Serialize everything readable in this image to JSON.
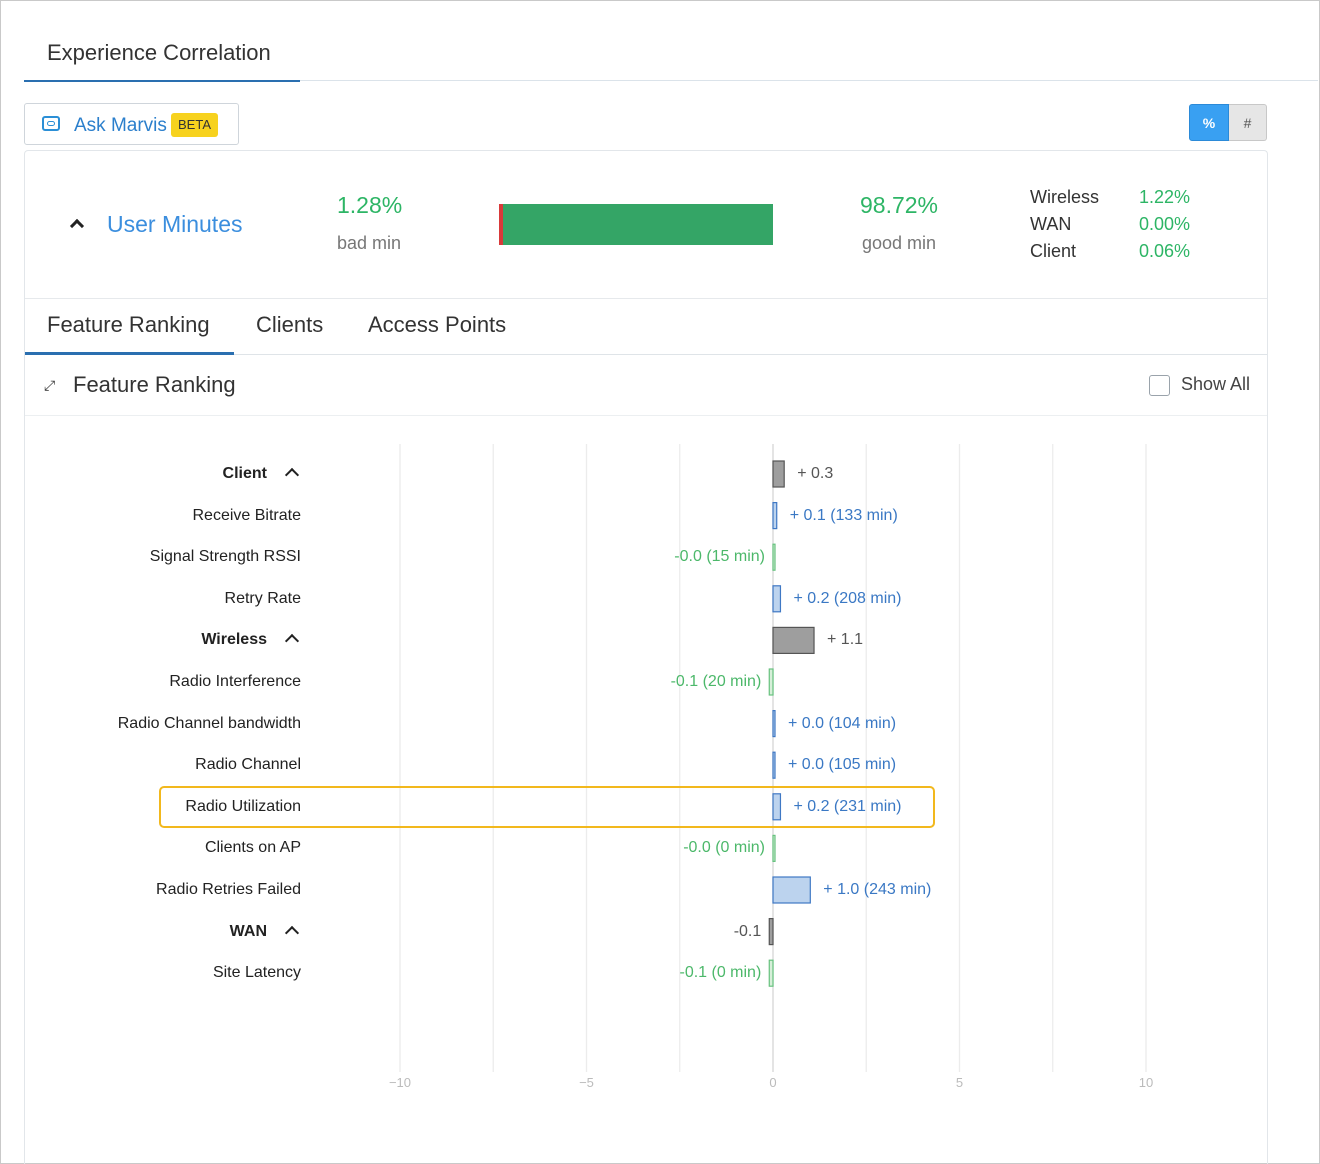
{
  "page": {
    "title": "Experience Correlation"
  },
  "ask_marvis": {
    "label": "Ask Marvis",
    "badge": "BETA"
  },
  "unit_toggle": {
    "percent_label": "%",
    "count_label": "#",
    "selected": "%"
  },
  "summary": {
    "metric_label": "User Minutes",
    "bad_pct": "1.28%",
    "bad_label": "bad min",
    "good_pct": "98.72%",
    "good_label": "good min",
    "bad_fraction": 0.0128,
    "breakdown": [
      {
        "label": "Wireless",
        "value": "1.22%"
      },
      {
        "label": "WAN",
        "value": "0.00%"
      },
      {
        "label": "Client",
        "value": "0.06%"
      }
    ]
  },
  "tabs": [
    {
      "label": "Feature Ranking",
      "active": true
    },
    {
      "label": "Clients",
      "active": false
    },
    {
      "label": "Access Points",
      "active": false
    }
  ],
  "feature_ranking": {
    "title": "Feature Ranking",
    "show_all_label": "Show All",
    "show_all_checked": false
  },
  "colors": {
    "accent": "#2a6fb0",
    "good": "#2db565",
    "bad": "#d83a3a",
    "highlight": "#f2b81d",
    "bar_group": "#9e9e9e",
    "bar_positive": "#bcd3ee",
    "bar_negative": "#d6efd9"
  },
  "chart_data": {
    "type": "bar",
    "orientation": "horizontal",
    "xlim": [
      -10,
      10
    ],
    "x_ticks": [
      "−10",
      "−5",
      "0",
      "5",
      "10"
    ],
    "x_tick_values": [
      -10,
      -5,
      0,
      5,
      10
    ],
    "grid": true,
    "rows": [
      {
        "label": "Client",
        "group": true,
        "value": 0.3,
        "text": "+ 0.3"
      },
      {
        "label": "Receive Bitrate",
        "group": false,
        "value": 0.1,
        "text": "+ 0.1 (133 min)"
      },
      {
        "label": "Signal Strength RSSI",
        "group": false,
        "value": -0.0,
        "text": "-0.0 (15 min)"
      },
      {
        "label": "Retry Rate",
        "group": false,
        "value": 0.2,
        "text": "+ 0.2 (208 min)"
      },
      {
        "label": "Wireless",
        "group": true,
        "value": 1.1,
        "text": "+ 1.1"
      },
      {
        "label": "Radio Interference",
        "group": false,
        "value": -0.1,
        "text": "-0.1 (20 min)"
      },
      {
        "label": "Radio Channel bandwidth",
        "group": false,
        "value": 0.0,
        "text": "+ 0.0 (104 min)"
      },
      {
        "label": "Radio Channel",
        "group": false,
        "value": 0.0,
        "text": "+ 0.0 (105 min)"
      },
      {
        "label": "Radio Utilization",
        "group": false,
        "value": 0.2,
        "text": "+ 0.2 (231 min)",
        "highlighted": true
      },
      {
        "label": "Clients on AP",
        "group": false,
        "value": -0.0,
        "text": "-0.0 (0 min)"
      },
      {
        "label": "Radio Retries Failed",
        "group": false,
        "value": 1.0,
        "text": "+ 1.0 (243 min)"
      },
      {
        "label": "WAN",
        "group": true,
        "value": -0.1,
        "text": "-0.1"
      },
      {
        "label": "Site Latency",
        "group": false,
        "value": -0.1,
        "text": "-0.1 (0 min)"
      }
    ]
  }
}
